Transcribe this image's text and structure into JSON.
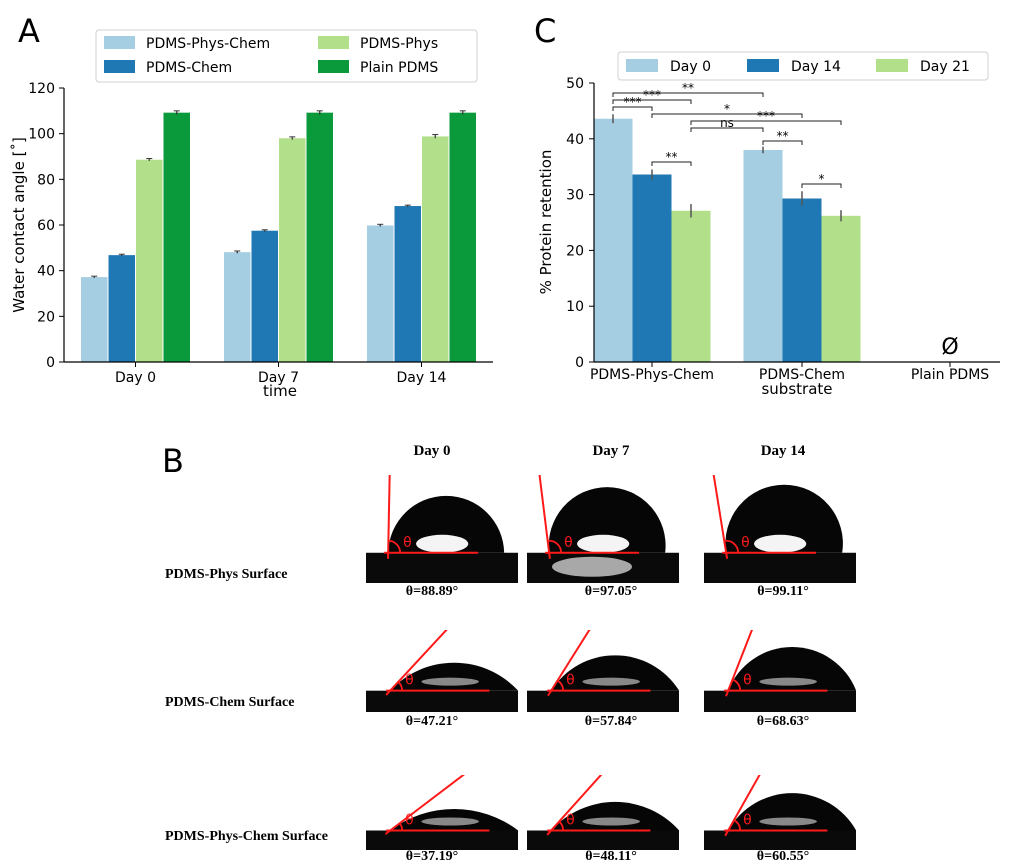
{
  "panels": {
    "a": "A",
    "b": "B",
    "c": "C"
  },
  "chart_data": [
    {
      "panel": "A",
      "type": "bar",
      "categories": [
        "Day 0",
        "Day 7",
        "Day 14"
      ],
      "series": [
        {
          "name": "PDMS-Phys-Chem",
          "color": "#a6cee3",
          "values": [
            37.19,
            48.11,
            59.8
          ],
          "errors": [
            0.4,
            0.5,
            0.5
          ]
        },
        {
          "name": "PDMS-Chem",
          "color": "#1f78b4",
          "values": [
            46.8,
            57.5,
            68.3
          ],
          "errors": [
            0.4,
            0.4,
            0.4
          ]
        },
        {
          "name": "PDMS-Phys",
          "color": "#b2df8a",
          "values": [
            88.6,
            98.0,
            98.8
          ],
          "errors": [
            0.5,
            0.6,
            0.8
          ]
        },
        {
          "name": "Plain PDMS",
          "color": "#0a9a3c",
          "values": [
            109.2,
            109.2,
            109.2
          ],
          "errors": [
            0.8,
            0.8,
            0.8
          ]
        }
      ],
      "xlabel": "time",
      "ylabel": "Water contact angle [˚]",
      "ylim": [
        0,
        120
      ],
      "yticks": [
        0,
        20,
        40,
        60,
        80,
        100,
        120
      ],
      "legend": "top",
      "grid": false
    },
    {
      "panel": "C",
      "type": "bar",
      "categories": [
        "PDMS-Phys-Chem",
        "PDMS-Chem",
        "Plain PDMS"
      ],
      "series": [
        {
          "name": "Day 0",
          "color": "#a6cee3",
          "values": [
            43.6,
            38.0,
            null
          ],
          "errors": [
            0.8,
            0.6,
            null
          ]
        },
        {
          "name": "Day 14",
          "color": "#1f78b4",
          "values": [
            33.6,
            29.3,
            null
          ],
          "errors": [
            0.9,
            1.3,
            null
          ]
        },
        {
          "name": "Day 21",
          "color": "#b2df8a",
          "values": [
            27.1,
            26.2,
            null
          ],
          "errors": [
            1.2,
            1.0,
            null
          ]
        }
      ],
      "xlabel": "substrate",
      "ylabel": "% Protein retention",
      "ylim": [
        0,
        50
      ],
      "yticks": [
        0,
        10,
        20,
        30,
        40,
        50
      ],
      "legend": "top",
      "grid": false,
      "empty_marker": "Ø",
      "significance": [
        "***",
        "***",
        "**",
        "*",
        "ns",
        "***",
        "**",
        "**",
        "*"
      ]
    }
  ],
  "panel_b": {
    "columns": [
      "Day 0",
      "Day 7",
      "Day 14"
    ],
    "theta_symbol": "θ",
    "rows": [
      {
        "label": "PDMS-Phys Surface",
        "values": [
          "θ=88.89°",
          "θ=97.05°",
          "θ=99.11°"
        ],
        "angles": [
          88.89,
          97.05,
          99.11
        ]
      },
      {
        "label": "PDMS-Chem Surface",
        "values": [
          "θ=47.21°",
          "θ=57.84°",
          "θ=68.63°"
        ],
        "angles": [
          47.21,
          57.84,
          68.63
        ]
      },
      {
        "label": "PDMS-Phys-Chem Surface",
        "values": [
          "θ=37.19°",
          "θ=48.11°",
          "θ=60.55°"
        ],
        "angles": [
          37.19,
          48.11,
          60.55
        ]
      }
    ]
  }
}
